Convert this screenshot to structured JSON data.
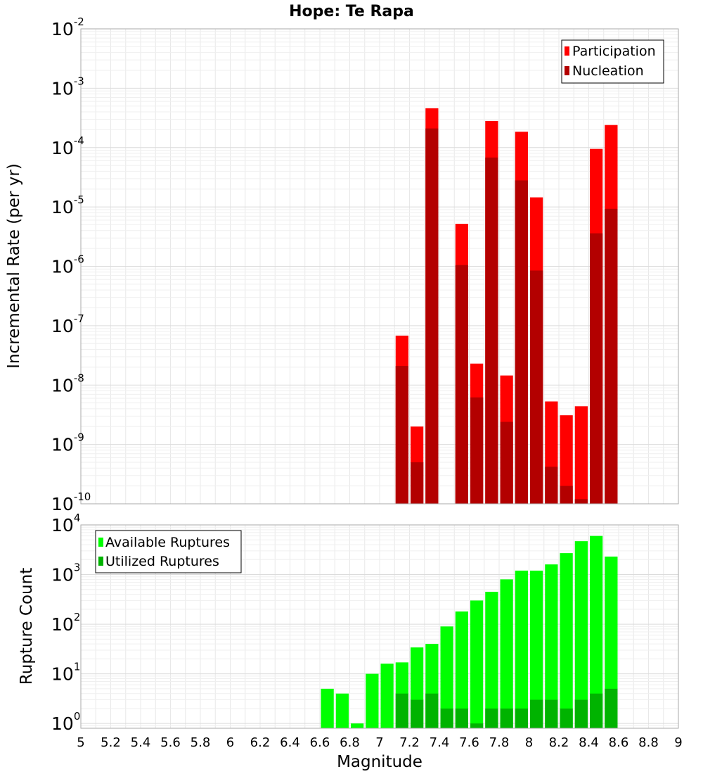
{
  "chart_data": [
    {
      "type": "bar",
      "title": "Hope: Te Rapa",
      "ylabel": "Incremental Rate (per yr)",
      "xlabel": "",
      "y_scale": "log",
      "ylim": [
        1e-10,
        0.01
      ],
      "xlim": [
        5,
        9
      ],
      "grid": true,
      "legend_placement": "top-right",
      "y_ticks": [
        {
          "base": "10",
          "exp": "-10",
          "value": 1e-10
        },
        {
          "base": "10",
          "exp": "-9",
          "value": 1e-09
        },
        {
          "base": "10",
          "exp": "-8",
          "value": 1e-08
        },
        {
          "base": "10",
          "exp": "-7",
          "value": 1e-07
        },
        {
          "base": "10",
          "exp": "-6",
          "value": 1e-06
        },
        {
          "base": "10",
          "exp": "-5",
          "value": 1e-05
        },
        {
          "base": "10",
          "exp": "-4",
          "value": 0.0001
        },
        {
          "base": "10",
          "exp": "-3",
          "value": 0.001
        },
        {
          "base": "10",
          "exp": "-2",
          "value": 0.01
        }
      ],
      "series": [
        {
          "name": "Participation",
          "color": "#ff0000",
          "x": [
            7.15,
            7.25,
            7.35,
            7.55,
            7.65,
            7.75,
            7.85,
            7.95,
            8.05,
            8.15,
            8.25,
            8.35,
            8.45,
            8.55
          ],
          "values": [
            6.8e-08,
            2e-09,
            0.00046,
            5.2e-06,
            2.3e-08,
            0.00028,
            1.45e-08,
            0.000185,
            1.45e-05,
            5.3e-09,
            3.1e-09,
            4.4e-09,
            9.5e-05,
            0.00024
          ]
        },
        {
          "name": "Nucleation",
          "color": "#b30000",
          "x": [
            7.15,
            7.25,
            7.35,
            7.55,
            7.65,
            7.75,
            7.85,
            7.95,
            8.05,
            8.15,
            8.25,
            8.35,
            8.45,
            8.55
          ],
          "values": [
            2.1e-08,
            5e-10,
            0.00021,
            1.05e-06,
            6.2e-09,
            6.8e-05,
            2.4e-09,
            2.8e-05,
            8.5e-07,
            4.2e-10,
            2e-10,
            1.2e-10,
            3.6e-06,
            9.3e-06
          ]
        }
      ]
    },
    {
      "type": "bar",
      "title": "",
      "ylabel": "Rupture Count",
      "xlabel": "Magnitude",
      "y_scale": "log",
      "ylim": [
        0.8,
        10000
      ],
      "xlim": [
        5,
        9
      ],
      "grid": true,
      "legend_placement": "top-left",
      "y_ticks": [
        {
          "base": "10",
          "exp": "0",
          "value": 1
        },
        {
          "base": "10",
          "exp": "1",
          "value": 10
        },
        {
          "base": "10",
          "exp": "2",
          "value": 100
        },
        {
          "base": "10",
          "exp": "3",
          "value": 1000
        },
        {
          "base": "10",
          "exp": "4",
          "value": 10000
        }
      ],
      "x_ticks": [
        "5",
        "5.2",
        "5.4",
        "5.6",
        "5.8",
        "6",
        "6.2",
        "6.4",
        "6.6",
        "6.8",
        "7",
        "7.2",
        "7.4",
        "7.6",
        "7.8",
        "8",
        "8.2",
        "8.4",
        "8.6",
        "8.8",
        "9"
      ],
      "series": [
        {
          "name": "Available Ruptures",
          "color": "#00ff00",
          "x": [
            6.65,
            6.75,
            6.85,
            6.95,
            7.05,
            7.15,
            7.25,
            7.35,
            7.45,
            7.55,
            7.65,
            7.75,
            7.85,
            7.95,
            8.05,
            8.15,
            8.25,
            8.35,
            8.45,
            8.55
          ],
          "values": [
            5,
            4,
            1,
            10,
            16,
            17,
            34,
            40,
            90,
            180,
            300,
            450,
            800,
            1200,
            1200,
            1600,
            2700,
            4700,
            6000,
            2300
          ]
        },
        {
          "name": "Utilized Ruptures",
          "color": "#00b300",
          "x": [
            7.15,
            7.25,
            7.35,
            7.45,
            7.55,
            7.65,
            7.75,
            7.85,
            7.95,
            8.05,
            8.15,
            8.25,
            8.35,
            8.45,
            8.55
          ],
          "values": [
            4,
            3,
            4,
            2,
            2,
            1,
            2,
            2,
            2,
            3,
            3,
            2,
            3,
            4,
            5
          ]
        }
      ]
    }
  ]
}
